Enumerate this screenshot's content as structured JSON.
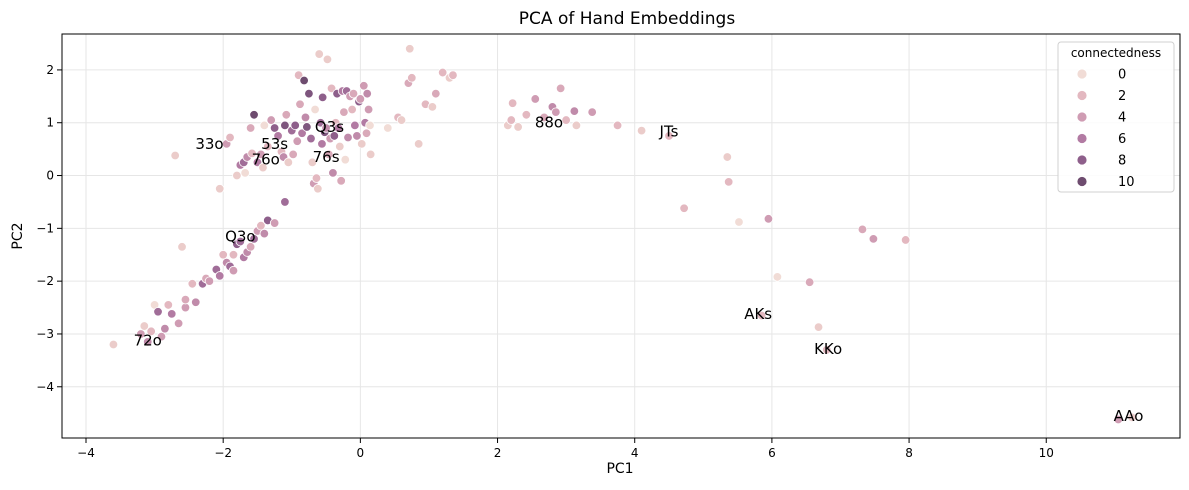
{
  "chart_data": {
    "type": "scatter",
    "title": "PCA of Hand Embeddings",
    "xlabel": "PC1",
    "ylabel": "PC2",
    "xlim": [
      -4.35,
      11.95
    ],
    "ylim": [
      -4.97,
      2.68
    ],
    "xticks": [
      -4,
      -2,
      0,
      2,
      4,
      6,
      8,
      10
    ],
    "yticks": [
      -4,
      -3,
      -2,
      -1,
      0,
      1,
      2
    ],
    "grid": true,
    "legend": {
      "title": "connectedness",
      "placement": "top-right",
      "entries": [
        {
          "label": "0",
          "color": "#f1dcd6"
        },
        {
          "label": "2",
          "color": "#e3b8c0"
        },
        {
          "label": "4",
          "color": "#cf9cb3"
        },
        {
          "label": "6",
          "color": "#b27ba3"
        },
        {
          "label": "8",
          "color": "#8e5f8b"
        },
        {
          "label": "10",
          "color": "#6e4c6f"
        }
      ]
    },
    "annotations": [
      {
        "text": "33o",
        "x": -2.2,
        "y": 0.6
      },
      {
        "text": "53s",
        "x": -1.25,
        "y": 0.6
      },
      {
        "text": "Q3s",
        "x": -0.45,
        "y": 0.92
      },
      {
        "text": "76o",
        "x": -1.38,
        "y": 0.3
      },
      {
        "text": "76s",
        "x": -0.5,
        "y": 0.35
      },
      {
        "text": "88o",
        "x": 2.75,
        "y": 1.0
      },
      {
        "text": "JTs",
        "x": 4.5,
        "y": 0.83
      },
      {
        "text": "Q3o",
        "x": -1.75,
        "y": -1.15
      },
      {
        "text": "72o",
        "x": -3.1,
        "y": -3.12
      },
      {
        "text": "AKs",
        "x": 5.8,
        "y": -2.62
      },
      {
        "text": "KKo",
        "x": 6.82,
        "y": -3.28
      },
      {
        "text": "AAo",
        "x": 11.2,
        "y": -4.55
      }
    ],
    "points": [
      {
        "x": -3.6,
        "y": -3.2,
        "c": 1
      },
      {
        "x": -3.2,
        "y": -3.0,
        "c": 4
      },
      {
        "x": -3.1,
        "y": -3.15,
        "c": 5
      },
      {
        "x": -3.05,
        "y": -2.95,
        "c": 2
      },
      {
        "x": -3.15,
        "y": -2.85,
        "c": 1
      },
      {
        "x": -3.0,
        "y": -2.45,
        "c": 0
      },
      {
        "x": -2.95,
        "y": -2.58,
        "c": 7
      },
      {
        "x": -2.9,
        "y": -3.05,
        "c": 4
      },
      {
        "x": -2.85,
        "y": -2.9,
        "c": 5
      },
      {
        "x": -2.8,
        "y": -2.45,
        "c": 2
      },
      {
        "x": -2.75,
        "y": -2.62,
        "c": 6
      },
      {
        "x": -2.65,
        "y": -2.8,
        "c": 4
      },
      {
        "x": -2.55,
        "y": -2.5,
        "c": 4
      },
      {
        "x": -2.55,
        "y": -2.35,
        "c": 3
      },
      {
        "x": -2.45,
        "y": -2.05,
        "c": 2
      },
      {
        "x": -2.4,
        "y": -2.4,
        "c": 5
      },
      {
        "x": -2.3,
        "y": -2.05,
        "c": 7
      },
      {
        "x": -2.25,
        "y": -1.95,
        "c": 3
      },
      {
        "x": -2.2,
        "y": -2.0,
        "c": 4
      },
      {
        "x": -2.1,
        "y": -1.78,
        "c": 7
      },
      {
        "x": -2.05,
        "y": -1.9,
        "c": 6
      },
      {
        "x": -2.0,
        "y": -1.5,
        "c": 2
      },
      {
        "x": -1.95,
        "y": -1.65,
        "c": 5
      },
      {
        "x": -1.9,
        "y": -1.72,
        "c": 7
      },
      {
        "x": -1.85,
        "y": -1.8,
        "c": 4
      },
      {
        "x": -1.85,
        "y": -1.5,
        "c": 2
      },
      {
        "x": -1.8,
        "y": -1.3,
        "c": 8
      },
      {
        "x": -1.75,
        "y": -1.25,
        "c": 7
      },
      {
        "x": -1.7,
        "y": -1.55,
        "c": 6
      },
      {
        "x": -1.65,
        "y": -1.45,
        "c": 5
      },
      {
        "x": -1.6,
        "y": -1.35,
        "c": 3
      },
      {
        "x": -1.55,
        "y": -1.2,
        "c": 7
      },
      {
        "x": -1.5,
        "y": -1.05,
        "c": 4
      },
      {
        "x": -1.45,
        "y": -0.95,
        "c": 2
      },
      {
        "x": -1.4,
        "y": -1.1,
        "c": 5
      },
      {
        "x": -1.35,
        "y": -0.85,
        "c": 8
      },
      {
        "x": -1.25,
        "y": -0.9,
        "c": 4
      },
      {
        "x": -1.1,
        "y": -0.5,
        "c": 7
      },
      {
        "x": -2.6,
        "y": -1.35,
        "c": 1
      },
      {
        "x": -2.05,
        "y": -0.25,
        "c": 1
      },
      {
        "x": -2.7,
        "y": 0.38,
        "c": 1
      },
      {
        "x": -1.95,
        "y": 0.6,
        "c": 4
      },
      {
        "x": -1.9,
        "y": 0.72,
        "c": 2
      },
      {
        "x": -1.8,
        "y": 0.0,
        "c": 1
      },
      {
        "x": -1.75,
        "y": 0.2,
        "c": 6
      },
      {
        "x": -1.7,
        "y": 0.25,
        "c": 7
      },
      {
        "x": -1.68,
        "y": 0.05,
        "c": 0
      },
      {
        "x": -1.65,
        "y": 0.35,
        "c": 5
      },
      {
        "x": -1.6,
        "y": 0.9,
        "c": 3
      },
      {
        "x": -1.58,
        "y": 0.42,
        "c": 2
      },
      {
        "x": -1.55,
        "y": 1.15,
        "c": 10
      },
      {
        "x": -1.5,
        "y": 0.25,
        "c": 6
      },
      {
        "x": -1.45,
        "y": 0.4,
        "c": 4
      },
      {
        "x": -1.42,
        "y": 0.15,
        "c": 1
      },
      {
        "x": -1.4,
        "y": 0.95,
        "c": 0
      },
      {
        "x": -1.35,
        "y": 0.55,
        "c": 2
      },
      {
        "x": -1.3,
        "y": 1.05,
        "c": 4
      },
      {
        "x": -1.25,
        "y": 0.9,
        "c": 8
      },
      {
        "x": -1.2,
        "y": 0.75,
        "c": 6
      },
      {
        "x": -1.15,
        "y": 0.45,
        "c": 2
      },
      {
        "x": -1.12,
        "y": 0.35,
        "c": 5
      },
      {
        "x": -1.1,
        "y": 0.95,
        "c": 9
      },
      {
        "x": -1.08,
        "y": 1.15,
        "c": 3
      },
      {
        "x": -1.05,
        "y": 0.25,
        "c": 1
      },
      {
        "x": -1.0,
        "y": 0.85,
        "c": 7
      },
      {
        "x": -0.98,
        "y": 0.4,
        "c": 3
      },
      {
        "x": -0.95,
        "y": 0.95,
        "c": 8
      },
      {
        "x": -0.9,
        "y": 1.9,
        "c": 2
      },
      {
        "x": -0.92,
        "y": 0.65,
        "c": 4
      },
      {
        "x": -0.88,
        "y": 1.35,
        "c": 3
      },
      {
        "x": -0.85,
        "y": 0.8,
        "c": 6
      },
      {
        "x": -0.82,
        "y": 1.8,
        "c": 10
      },
      {
        "x": -0.8,
        "y": 1.1,
        "c": 5
      },
      {
        "x": -0.78,
        "y": 0.92,
        "c": 9
      },
      {
        "x": -0.75,
        "y": 1.55,
        "c": 9
      },
      {
        "x": -0.72,
        "y": 0.7,
        "c": 7
      },
      {
        "x": -0.7,
        "y": 0.25,
        "c": 1
      },
      {
        "x": -0.68,
        "y": -0.15,
        "c": 4
      },
      {
        "x": -0.66,
        "y": 1.25,
        "c": 0
      },
      {
        "x": -0.64,
        "y": -0.05,
        "c": 2
      },
      {
        "x": -0.62,
        "y": -0.25,
        "c": 1
      },
      {
        "x": -0.6,
        "y": 2.3,
        "c": 1
      },
      {
        "x": -0.58,
        "y": 1.0,
        "c": 7
      },
      {
        "x": -0.56,
        "y": 0.6,
        "c": 6
      },
      {
        "x": -0.55,
        "y": 1.48,
        "c": 8
      },
      {
        "x": -0.52,
        "y": 0.82,
        "c": 9
      },
      {
        "x": -0.5,
        "y": 0.9,
        "c": 5
      },
      {
        "x": -0.48,
        "y": 2.2,
        "c": 1
      },
      {
        "x": -0.46,
        "y": 0.4,
        "c": 3
      },
      {
        "x": -0.44,
        "y": 0.7,
        "c": 4
      },
      {
        "x": -0.42,
        "y": 1.65,
        "c": 2
      },
      {
        "x": -0.4,
        "y": 0.05,
        "c": 5
      },
      {
        "x": -0.38,
        "y": 0.75,
        "c": 8
      },
      {
        "x": -0.36,
        "y": 1.0,
        "c": 2
      },
      {
        "x": -0.34,
        "y": 1.55,
        "c": 8
      },
      {
        "x": -0.32,
        "y": 0.9,
        "c": 6
      },
      {
        "x": -0.3,
        "y": 0.55,
        "c": 1
      },
      {
        "x": -0.28,
        "y": -0.1,
        "c": 3
      },
      {
        "x": -0.26,
        "y": 1.6,
        "c": 6
      },
      {
        "x": -0.24,
        "y": 1.2,
        "c": 3
      },
      {
        "x": -0.22,
        "y": 0.3,
        "c": 0
      },
      {
        "x": -0.2,
        "y": 1.6,
        "c": 7
      },
      {
        "x": -0.18,
        "y": 0.72,
        "c": 5
      },
      {
        "x": -0.15,
        "y": 1.5,
        "c": 4
      },
      {
        "x": -0.12,
        "y": 1.25,
        "c": 2
      },
      {
        "x": -0.1,
        "y": 1.55,
        "c": 3
      },
      {
        "x": -0.08,
        "y": 0.95,
        "c": 6
      },
      {
        "x": -0.05,
        "y": 0.75,
        "c": 5
      },
      {
        "x": -0.02,
        "y": 1.4,
        "c": 8
      },
      {
        "x": 0.0,
        "y": 1.45,
        "c": 4
      },
      {
        "x": 0.02,
        "y": 0.6,
        "c": 1
      },
      {
        "x": 0.05,
        "y": 1.7,
        "c": 4
      },
      {
        "x": 0.07,
        "y": 1.0,
        "c": 6
      },
      {
        "x": 0.09,
        "y": 0.8,
        "c": 3
      },
      {
        "x": 0.1,
        "y": 1.55,
        "c": 5
      },
      {
        "x": 0.12,
        "y": 1.25,
        "c": 4
      },
      {
        "x": 0.14,
        "y": 0.95,
        "c": 0
      },
      {
        "x": 0.15,
        "y": 0.4,
        "c": 1
      },
      {
        "x": 0.4,
        "y": 0.9,
        "c": 0
      },
      {
        "x": 0.55,
        "y": 1.1,
        "c": 2
      },
      {
        "x": 0.6,
        "y": 1.05,
        "c": 1
      },
      {
        "x": 0.7,
        "y": 1.75,
        "c": 3
      },
      {
        "x": 0.72,
        "y": 2.4,
        "c": 1
      },
      {
        "x": 0.75,
        "y": 1.85,
        "c": 2
      },
      {
        "x": 0.85,
        "y": 0.6,
        "c": 1
      },
      {
        "x": 0.95,
        "y": 1.35,
        "c": 2
      },
      {
        "x": 1.05,
        "y": 1.3,
        "c": 1
      },
      {
        "x": 1.1,
        "y": 1.55,
        "c": 3
      },
      {
        "x": 1.2,
        "y": 1.95,
        "c": 2
      },
      {
        "x": 1.3,
        "y": 1.85,
        "c": 1
      },
      {
        "x": 1.35,
        "y": 1.9,
        "c": 2
      },
      {
        "x": 2.15,
        "y": 0.95,
        "c": 1
      },
      {
        "x": 2.2,
        "y": 1.05,
        "c": 2
      },
      {
        "x": 2.22,
        "y": 1.37,
        "c": 2
      },
      {
        "x": 2.3,
        "y": 0.92,
        "c": 1
      },
      {
        "x": 2.42,
        "y": 1.15,
        "c": 2
      },
      {
        "x": 2.55,
        "y": 1.45,
        "c": 4
      },
      {
        "x": 2.68,
        "y": 1.1,
        "c": 3
      },
      {
        "x": 2.8,
        "y": 1.3,
        "c": 5
      },
      {
        "x": 2.85,
        "y": 1.2,
        "c": 4
      },
      {
        "x": 2.92,
        "y": 1.65,
        "c": 3
      },
      {
        "x": 3.0,
        "y": 1.05,
        "c": 2
      },
      {
        "x": 3.12,
        "y": 1.22,
        "c": 5
      },
      {
        "x": 3.15,
        "y": 0.95,
        "c": 1
      },
      {
        "x": 3.38,
        "y": 1.2,
        "c": 4
      },
      {
        "x": 3.75,
        "y": 0.95,
        "c": 2
      },
      {
        "x": 4.1,
        "y": 0.85,
        "c": 1
      },
      {
        "x": 4.5,
        "y": 0.75,
        "c": 2
      },
      {
        "x": 4.72,
        "y": -0.62,
        "c": 2
      },
      {
        "x": 5.35,
        "y": 0.35,
        "c": 1
      },
      {
        "x": 5.37,
        "y": -0.12,
        "c": 2
      },
      {
        "x": 5.52,
        "y": -0.88,
        "c": 0
      },
      {
        "x": 5.95,
        "y": -0.82,
        "c": 4
      },
      {
        "x": 6.08,
        "y": -1.92,
        "c": 0
      },
      {
        "x": 5.85,
        "y": -2.65,
        "c": 2
      },
      {
        "x": 6.55,
        "y": -2.02,
        "c": 3
      },
      {
        "x": 6.68,
        "y": -2.87,
        "c": 1
      },
      {
        "x": 6.8,
        "y": -3.3,
        "c": 2
      },
      {
        "x": 7.32,
        "y": -1.02,
        "c": 3
      },
      {
        "x": 7.48,
        "y": -1.2,
        "c": 4
      },
      {
        "x": 7.95,
        "y": -1.22,
        "c": 2
      },
      {
        "x": 11.05,
        "y": -4.62,
        "c": 4
      },
      {
        "x": 11.25,
        "y": -4.58,
        "c": 1
      }
    ]
  }
}
